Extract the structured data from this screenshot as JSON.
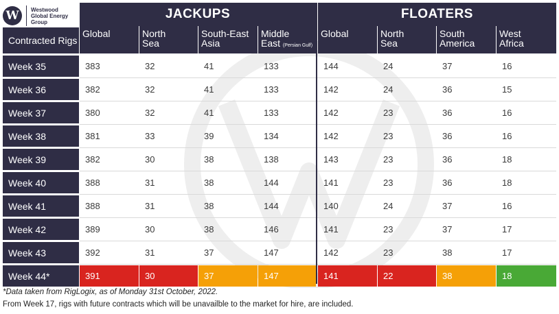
{
  "logo": {
    "letter": "W",
    "line1": "Westwood",
    "line2": "Global Energy",
    "line3": "Group"
  },
  "groups": {
    "jackups": "JACKUPS",
    "floaters": "FLOATERS"
  },
  "row_header": "Contracted Rigs",
  "columns": [
    {
      "l1": "Global",
      "l2": "",
      "l2small": ""
    },
    {
      "l1": "North",
      "l2": "Sea",
      "l2small": ""
    },
    {
      "l1": "South-East",
      "l2": "Asia",
      "l2small": ""
    },
    {
      "l1": "Middle",
      "l2": "East ",
      "l2small": "(Persian Gulf)"
    },
    {
      "l1": "Global",
      "l2": "",
      "l2small": ""
    },
    {
      "l1": "North",
      "l2": "Sea",
      "l2small": ""
    },
    {
      "l1": "South",
      "l2": "America",
      "l2small": ""
    },
    {
      "l1": "West",
      "l2": "Africa",
      "l2small": ""
    }
  ],
  "colors": {
    "navy": "#2f2d45",
    "red": "#d9241f",
    "orange": "#f5a007",
    "green": "#49a936"
  },
  "chart_data": {
    "type": "table",
    "categories": [
      "Week 35",
      "Week 36",
      "Week 37",
      "Week 38",
      "Week 39",
      "Week 40",
      "Week 41",
      "Week 42",
      "Week 43",
      "Week 44*"
    ],
    "series": [
      {
        "name": "JACKUPS Global",
        "values": [
          383,
          382,
          380,
          381,
          382,
          388,
          388,
          389,
          392,
          391
        ]
      },
      {
        "name": "JACKUPS North Sea",
        "values": [
          32,
          32,
          32,
          33,
          30,
          31,
          31,
          30,
          31,
          30
        ]
      },
      {
        "name": "JACKUPS South-East Asia",
        "values": [
          41,
          41,
          41,
          39,
          38,
          38,
          38,
          38,
          37,
          37
        ]
      },
      {
        "name": "JACKUPS Middle East (Persian Gulf)",
        "values": [
          133,
          133,
          133,
          134,
          138,
          144,
          144,
          146,
          147,
          147
        ]
      },
      {
        "name": "FLOATERS Global",
        "values": [
          144,
          142,
          142,
          142,
          143,
          141,
          140,
          141,
          142,
          141
        ]
      },
      {
        "name": "FLOATERS North Sea",
        "values": [
          24,
          24,
          23,
          23,
          23,
          23,
          24,
          23,
          23,
          22
        ]
      },
      {
        "name": "FLOATERS South America",
        "values": [
          37,
          36,
          36,
          36,
          36,
          36,
          37,
          37,
          38,
          38
        ]
      },
      {
        "name": "FLOATERS West Africa",
        "values": [
          16,
          15,
          16,
          16,
          18,
          18,
          16,
          17,
          17,
          18
        ]
      }
    ],
    "last_row_highlight": [
      "red",
      "red",
      "orange",
      "orange",
      "red",
      "red",
      "orange",
      "green"
    ]
  },
  "footnotes": {
    "line1": "*Data taken from RigLogix, as of Monday 31st October, 2022.",
    "line2": "From Week 17, rigs with future contracts which will be unavailble to the market for hire, are included."
  }
}
